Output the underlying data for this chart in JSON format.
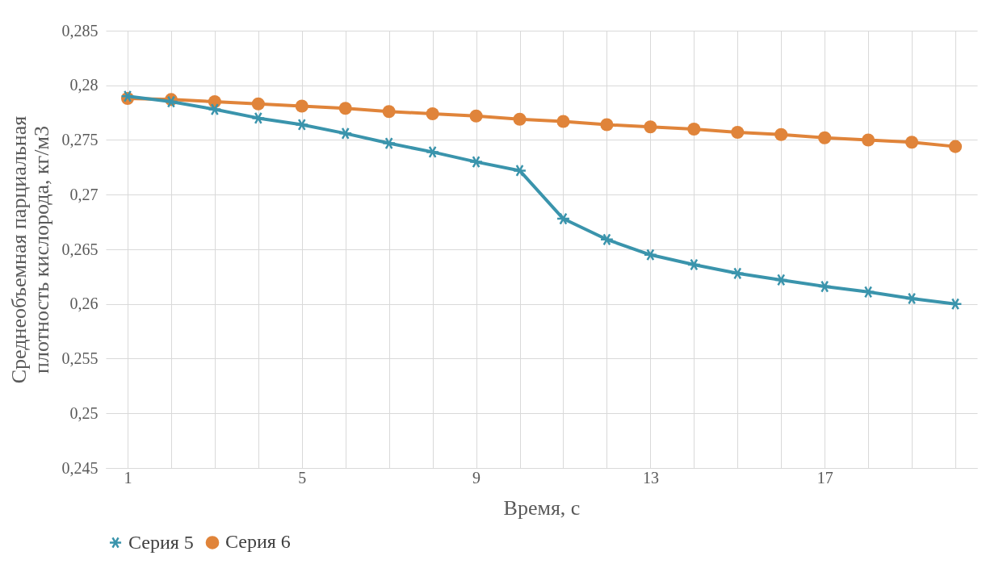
{
  "chart_data": {
    "type": "line",
    "xlabel": "Время, с",
    "ylabel": "Среднеобъемная парциальная плотность кислорода, кг/м3",
    "categories": [
      "1",
      null,
      null,
      null,
      "5",
      null,
      null,
      null,
      "9",
      null,
      null,
      null,
      "13",
      null,
      null,
      null,
      "17",
      null,
      null,
      null
    ],
    "series": [
      {
        "name": "Серия 5",
        "color": "#3a94ac",
        "marker": "cross",
        "values": [
          0.279,
          0.2785,
          0.2778,
          0.277,
          0.2764,
          0.2756,
          0.2747,
          0.2739,
          0.273,
          0.2722,
          0.2678,
          0.2659,
          0.2645,
          0.2636,
          0.2628,
          0.2622,
          0.2616,
          0.2611,
          0.2605,
          0.26
        ]
      },
      {
        "name": "Серия 6",
        "color": "#e0843a",
        "marker": "circle",
        "values": [
          0.2788,
          0.2787,
          0.2785,
          0.2783,
          0.2781,
          0.2779,
          0.2776,
          0.2774,
          0.2772,
          0.2769,
          0.2767,
          0.2764,
          0.2762,
          0.276,
          0.2757,
          0.2755,
          0.2752,
          0.275,
          0.2748,
          0.2744
        ]
      }
    ],
    "ylim": [
      0.245,
      0.285
    ],
    "yticks": [
      {
        "value": 0.245,
        "label": "0,245"
      },
      {
        "value": 0.25,
        "label": "0,25"
      },
      {
        "value": 0.255,
        "label": "0,255"
      },
      {
        "value": 0.26,
        "label": "0,26"
      },
      {
        "value": 0.265,
        "label": "0,265"
      },
      {
        "value": 0.27,
        "label": "0,27"
      },
      {
        "value": 0.275,
        "label": "0,275"
      },
      {
        "value": 0.28,
        "label": "0,28"
      },
      {
        "value": 0.285,
        "label": "0,285"
      }
    ],
    "grid": true,
    "legend": "bottom"
  }
}
